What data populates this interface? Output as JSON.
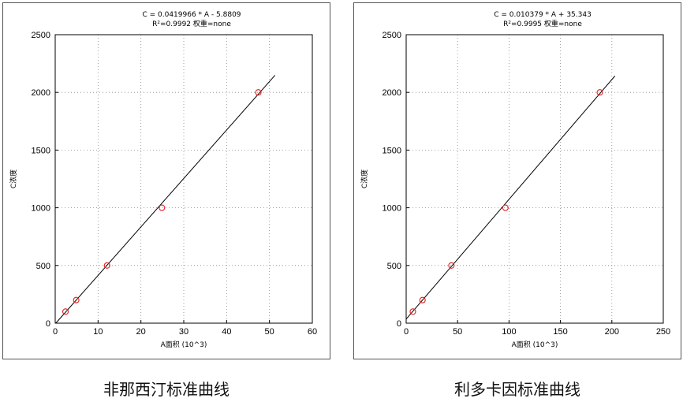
{
  "chart_data": [
    {
      "type": "scatter",
      "title": "C = 0.0419966 * A - 5.8809",
      "subtitle": "R²=0.9992 权重=none",
      "xlabel": "A面积 (10^3)",
      "ylabel": "C浓度",
      "xlim": [
        0,
        60
      ],
      "ylim": [
        0,
        2500
      ],
      "xticks": [
        0,
        10,
        20,
        30,
        40,
        50,
        60
      ],
      "yticks": [
        0,
        500,
        1000,
        1500,
        2000,
        2500
      ],
      "grid": true,
      "series": [
        {
          "points": [
            [
              2.4,
              100
            ],
            [
              4.9,
              200
            ],
            [
              12.1,
              500
            ],
            [
              24.9,
              1000
            ],
            [
              47.4,
              2000
            ]
          ]
        }
      ],
      "fit_line": {
        "slope": 41.9966,
        "intercept": -5.8809,
        "x_range": [
          0,
          51.3
        ]
      },
      "caption": "非那西汀标准曲线"
    },
    {
      "type": "scatter",
      "title": "C = 0.010379 * A + 35.343",
      "subtitle": "R²=0.9995 权重=none",
      "xlabel": "A面积 (10^3)",
      "ylabel": "C浓度",
      "xlim": [
        0,
        250
      ],
      "ylim": [
        0,
        2500
      ],
      "xticks": [
        0,
        50,
        100,
        150,
        200,
        250
      ],
      "yticks": [
        0,
        500,
        1000,
        1500,
        2000,
        2500
      ],
      "grid": true,
      "series": [
        {
          "points": [
            [
              6.5,
              100
            ],
            [
              15.9,
              200
            ],
            [
              44.0,
              500
            ],
            [
              96.5,
              1000
            ],
            [
              188.3,
              2000
            ]
          ]
        }
      ],
      "fit_line": {
        "slope": 10.379,
        "intercept": 35.343,
        "x_range": [
          0,
          203
        ]
      },
      "caption": "利多卡因标准曲线"
    }
  ],
  "colors": {
    "marker": "#e02020",
    "line": "#000000",
    "grid": "#888888"
  }
}
